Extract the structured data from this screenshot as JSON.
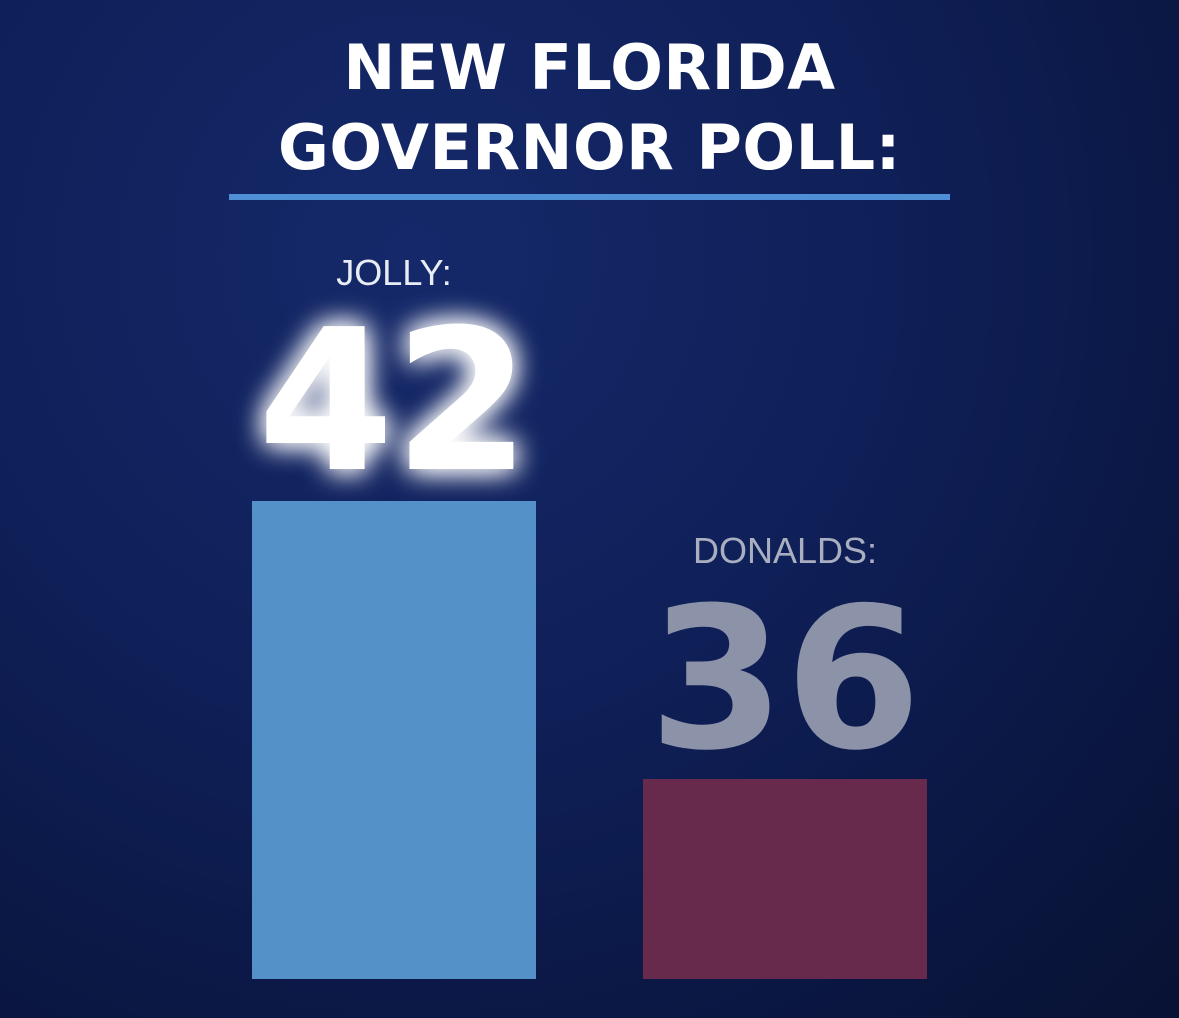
{
  "title_line1": "NEW FLORIDA",
  "title_line2": "GOVERNOR POLL:",
  "colors": {
    "rule": "#4f8fd6",
    "jolly_bar": "#5591c9",
    "donalds_bar": "#672a4c",
    "jolly_text": "#ffffff",
    "donalds_text": "#8c92a8",
    "label_jolly": "#e8ecf5",
    "label_donalds": "#a9aec0"
  },
  "chart_data": {
    "type": "bar",
    "categories": [
      "JOLLY:",
      "DONALDS:"
    ],
    "values": [
      42,
      36
    ],
    "data_labels": [
      "42",
      "36"
    ],
    "title": "NEW FLORIDA GOVERNOR POLL:",
    "xlabel": "",
    "ylabel": "",
    "grid": false,
    "legend": "none"
  }
}
